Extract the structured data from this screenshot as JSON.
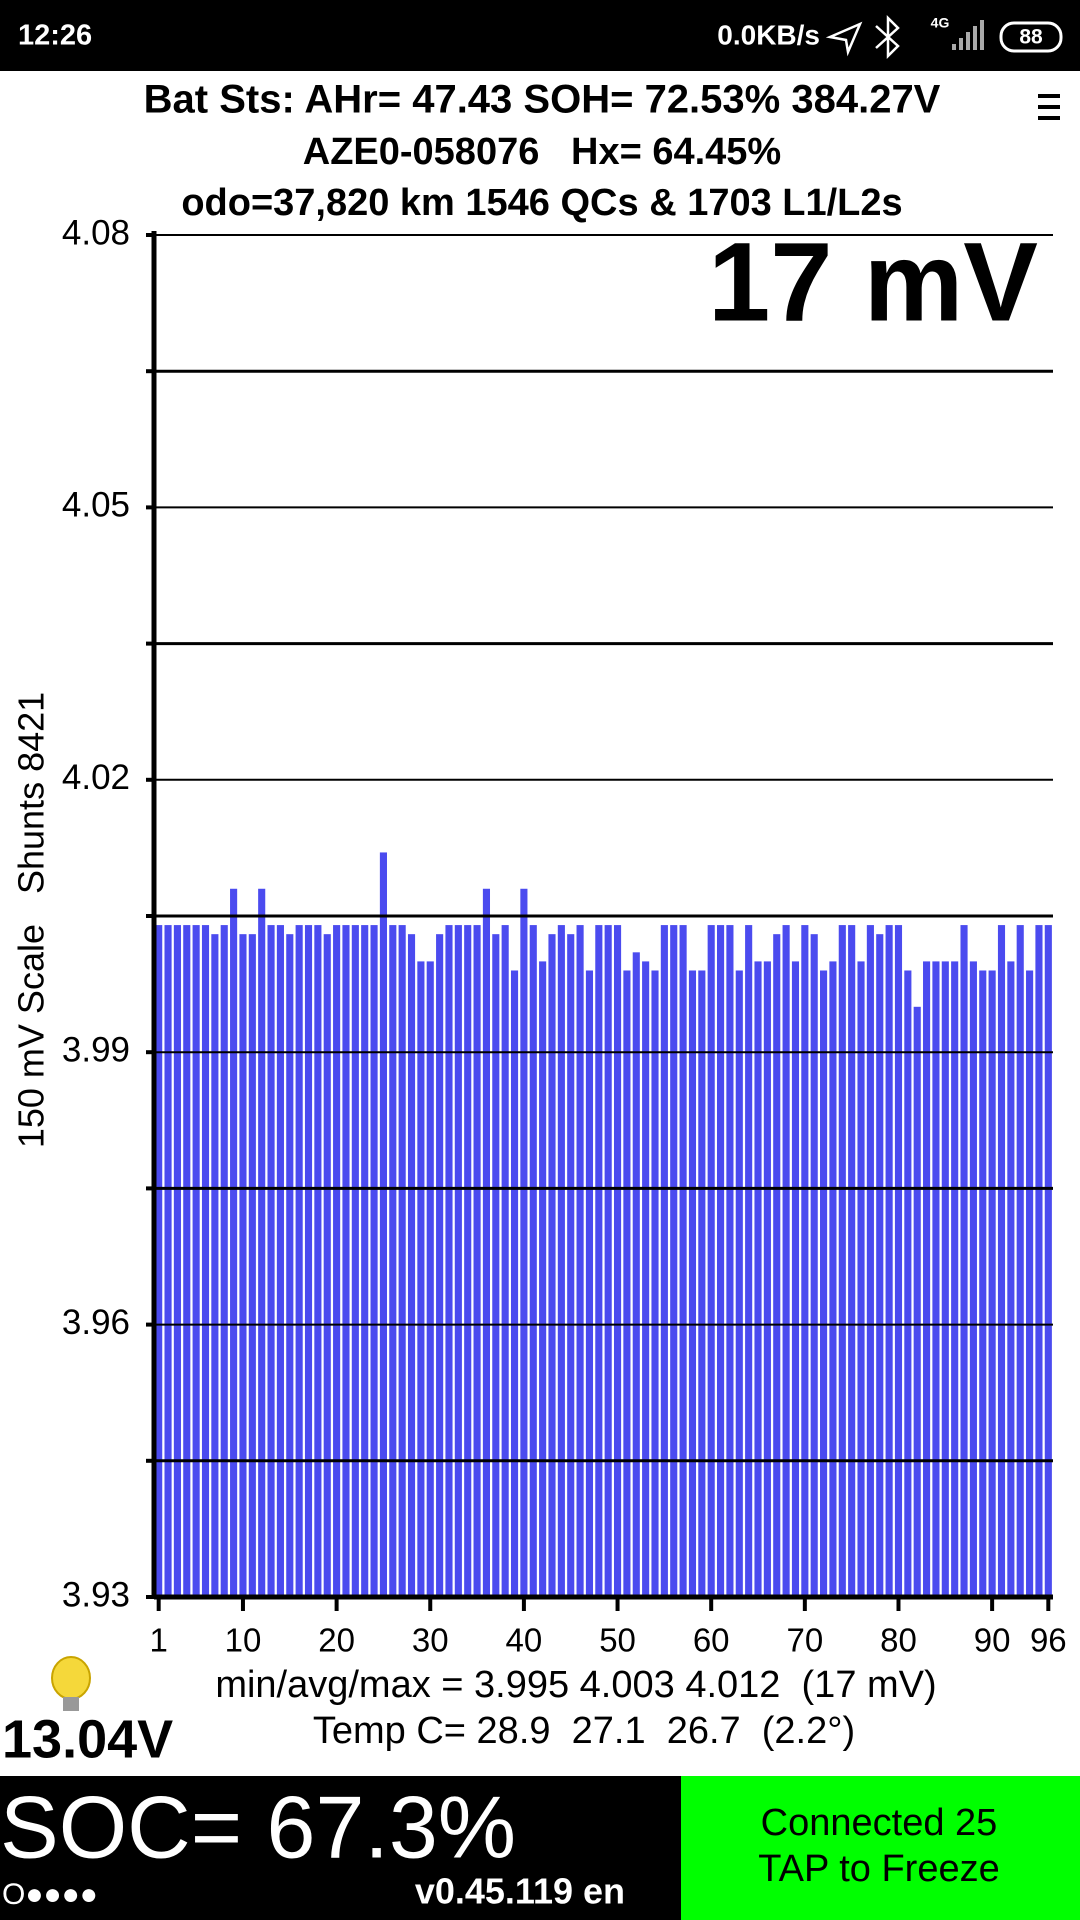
{
  "status_bar": {
    "time": "12:26",
    "network": "0.0KB/s",
    "signal": "4G",
    "battery": "88"
  },
  "header": {
    "line1": "Bat Sts: AHr= 47.43 SOH= 72.53% 384.27V",
    "line2": "AZE0-058076   Hx= 64.45%",
    "line3": "odo=37,820 km 1546 QCs & 1703 L1/L2s"
  },
  "chart_data": {
    "type": "bar",
    "annotation": "17 mV",
    "ylabel": "150 mV Scale   Shunts 8421",
    "color": "#4b4bef",
    "x": [
      1,
      2,
      3,
      4,
      5,
      6,
      7,
      8,
      9,
      10,
      11,
      12,
      13,
      14,
      15,
      16,
      17,
      18,
      19,
      20,
      21,
      22,
      23,
      24,
      25,
      26,
      27,
      28,
      29,
      30,
      31,
      32,
      33,
      34,
      35,
      36,
      37,
      38,
      39,
      40,
      41,
      42,
      43,
      44,
      45,
      46,
      47,
      48,
      49,
      50,
      51,
      52,
      53,
      54,
      55,
      56,
      57,
      58,
      59,
      60,
      61,
      62,
      63,
      64,
      65,
      66,
      67,
      68,
      69,
      70,
      71,
      72,
      73,
      74,
      75,
      76,
      77,
      78,
      79,
      80,
      81,
      82,
      83,
      84,
      85,
      86,
      87,
      88,
      89,
      90,
      91,
      92,
      93,
      94,
      95,
      96
    ],
    "values": [
      4.004,
      4.004,
      4.004,
      4.004,
      4.004,
      4.004,
      4.003,
      4.004,
      4.008,
      4.003,
      4.003,
      4.008,
      4.004,
      4.004,
      4.003,
      4.004,
      4.004,
      4.004,
      4.003,
      4.004,
      4.004,
      4.004,
      4.004,
      4.004,
      4.012,
      4.004,
      4.004,
      4.003,
      4.0,
      4.0,
      4.003,
      4.004,
      4.004,
      4.004,
      4.004,
      4.008,
      4.003,
      4.004,
      3.999,
      4.008,
      4.004,
      4.0,
      4.003,
      4.004,
      4.003,
      4.004,
      3.999,
      4.004,
      4.004,
      4.004,
      3.999,
      4.001,
      4.0,
      3.999,
      4.004,
      4.004,
      4.004,
      3.999,
      3.999,
      4.004,
      4.004,
      4.004,
      3.999,
      4.004,
      4.0,
      4.0,
      4.003,
      4.004,
      4.0,
      4.004,
      4.003,
      3.999,
      4.0,
      4.004,
      4.004,
      4.0,
      4.004,
      4.003,
      4.004,
      4.004,
      3.999,
      3.995,
      4.0,
      4.0,
      4.0,
      4.0,
      4.004,
      4.0,
      3.999,
      3.999,
      4.004,
      4.0,
      4.004,
      3.999,
      4.004,
      4.004
    ],
    "xlim": [
      0.5,
      96.5
    ],
    "xticks": [
      1,
      10,
      20,
      30,
      40,
      50,
      60,
      70,
      80,
      90,
      96
    ],
    "ylim": [
      3.93,
      4.08
    ],
    "yticks": [
      3.93,
      3.96,
      3.99,
      4.02,
      4.05,
      4.08
    ],
    "minor_yticks": [
      3.945,
      3.975,
      4.005,
      4.035,
      4.065
    ],
    "grid": true
  },
  "footer": {
    "stats": "min/avg/max = 3.995 4.003 4.012  (17 mV)",
    "temp": "Temp C= 28.9  27.1  26.7  (2.2°)",
    "voltage": "13.04V",
    "soc": "SOC= 67.3%",
    "dots": "O●●●●",
    "version": "v0.45.119 en",
    "button_line1": "Connected 25",
    "button_line2": "TAP to Freeze"
  }
}
